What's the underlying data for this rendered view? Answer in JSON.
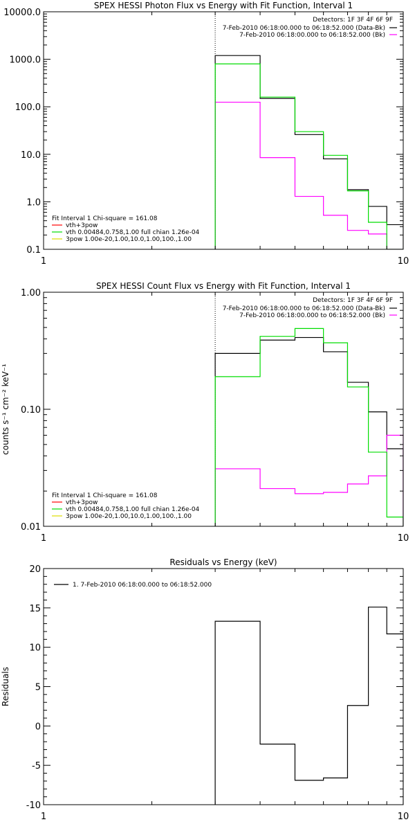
{
  "chart_data": [
    {
      "type": "line",
      "title": "SPEX HESSI Photon Flux vs Energy with Fit Function, Interval 1",
      "xlabel": "",
      "ylabel": "",
      "x_scale": "log",
      "y_scale": "log",
      "xlim": [
        1,
        10
      ],
      "ylim": [
        0.1,
        10000
      ],
      "x_ticks": [
        1,
        10
      ],
      "x_tick_labels": [
        "1",
        "10"
      ],
      "y_ticks": [
        0.1,
        1,
        10,
        100,
        1000,
        10000
      ],
      "y_tick_labels": [
        "0.1",
        "1.0",
        "10.0",
        "100.0",
        "1000.0",
        "10000.0"
      ],
      "vline_x": 3.0,
      "bin_edges": [
        3.0,
        4.0,
        5.0,
        6.0,
        7.0,
        8.0,
        9.0,
        10.0
      ],
      "series": [
        {
          "name": "Data-Bk",
          "color": "#000000",
          "values": [
            1200,
            150,
            26,
            8,
            1.8,
            0.8,
            0.33
          ]
        },
        {
          "name": "Bk",
          "color": "#ff00ff",
          "values": [
            125,
            8.5,
            1.3,
            0.52,
            0.25,
            0.21,
            0.1
          ]
        },
        {
          "name": "vth 0.00484,0.758,1.00  full chian 1.26e-04",
          "color": "#00dd00",
          "values": [
            800,
            160,
            30,
            9.5,
            1.7,
            0.37,
            0.1
          ]
        }
      ],
      "legend_top": {
        "header": "Detectors: 1F 3F 4F 6F 9F",
        "entries": [
          {
            "label": "7-Feb-2010 06:18:00.000 to 06:18:52.000 (Data-Bk)",
            "color": "#000000"
          },
          {
            "label": "7-Feb-2010 06:18:00.000 to 06:18:52.000 (Bk)",
            "color": "#ff00ff"
          }
        ]
      },
      "legend_bottom": {
        "header": "Fit Interval 1    Chi-square = 161.08",
        "entries": [
          {
            "label": "vth+3pow",
            "color": "#ff0000"
          },
          {
            "label": "vth 0.00484,0.758,1.00  full chian 1.26e-04",
            "color": "#00dd00"
          },
          {
            "label": "3pow 1.00e-20,1.00,10.0,1.00,100.,1.00",
            "color": "#dddd00"
          }
        ]
      }
    },
    {
      "type": "line",
      "title": "SPEX HESSI Count Flux vs Energy with Fit Function, Interval 1",
      "xlabel": "",
      "ylabel": "counts s⁻¹ cm⁻² keV⁻¹",
      "x_scale": "log",
      "y_scale": "log",
      "xlim": [
        1,
        10
      ],
      "ylim": [
        0.01,
        1.0
      ],
      "x_ticks": [
        1,
        10
      ],
      "x_tick_labels": [
        "1",
        "10"
      ],
      "y_ticks": [
        0.01,
        0.1,
        1.0
      ],
      "y_tick_labels": [
        "0.01",
        "0.10",
        "1.00"
      ],
      "vline_x": 3.0,
      "bin_edges": [
        3.0,
        4.0,
        5.0,
        6.0,
        7.0,
        8.0,
        9.0,
        10.0
      ],
      "series": [
        {
          "name": "Data-Bk",
          "color": "#000000",
          "values": [
            0.3,
            0.39,
            0.41,
            0.31,
            0.17,
            0.095,
            0.046
          ]
        },
        {
          "name": "Bk",
          "color": "#ff00ff",
          "values": [
            0.031,
            0.021,
            0.019,
            0.0195,
            0.023,
            0.027,
            0.06
          ]
        },
        {
          "name": "vth 0.00484,0.758,1.00  full chian 1.26e-04",
          "color": "#00dd00",
          "values": [
            0.19,
            0.42,
            0.49,
            0.37,
            0.155,
            0.043,
            0.012
          ]
        }
      ],
      "legend_top": {
        "header": "Detectors: 1F 3F 4F 6F 9F",
        "entries": [
          {
            "label": "7-Feb-2010 06:18:00.000 to 06:18:52.000 (Data-Bk)",
            "color": "#000000"
          },
          {
            "label": "7-Feb-2010 06:18:00.000 to 06:18:52.000 (Bk)",
            "color": "#ff00ff"
          }
        ]
      },
      "legend_bottom": {
        "header": "Fit Interval 1    Chi-square = 161.08",
        "entries": [
          {
            "label": "vth+3pow",
            "color": "#ff0000"
          },
          {
            "label": "vth 0.00484,0.758,1.00  full chian 1.26e-04",
            "color": "#00dd00"
          },
          {
            "label": "3pow 1.00e-20,1.00,10.0,1.00,100.,1.00",
            "color": "#dddd00"
          }
        ]
      }
    },
    {
      "type": "line",
      "title": "Residuals vs Energy (keV)",
      "xlabel": "",
      "ylabel": "Residuals",
      "x_scale": "log",
      "y_scale": "linear",
      "xlim": [
        1,
        10
      ],
      "ylim": [
        -10,
        20
      ],
      "x_ticks": [
        1,
        10
      ],
      "x_tick_labels": [
        "1",
        "10"
      ],
      "y_ticks": [
        -10,
        -5,
        0,
        5,
        10,
        15,
        20
      ],
      "y_tick_labels": [
        "-10",
        "-5",
        "0",
        "5",
        "10",
        "15",
        "20"
      ],
      "bin_edges": [
        3.0,
        4.0,
        5.0,
        6.0,
        7.0,
        8.0,
        9.0,
        10.0
      ],
      "series": [
        {
          "name": "1.  7-Feb-2010 06:18:00.000 to 06:18:52.000",
          "color": "#000000",
          "values": [
            13.3,
            -2.3,
            -6.9,
            -6.6,
            2.6,
            15.1,
            11.7
          ]
        }
      ],
      "legend_top": {
        "header": "",
        "entries": [
          {
            "label": "1.  7-Feb-2010 06:18:00.000 to 06:18:52.000",
            "color": "#000000"
          }
        ]
      }
    }
  ]
}
